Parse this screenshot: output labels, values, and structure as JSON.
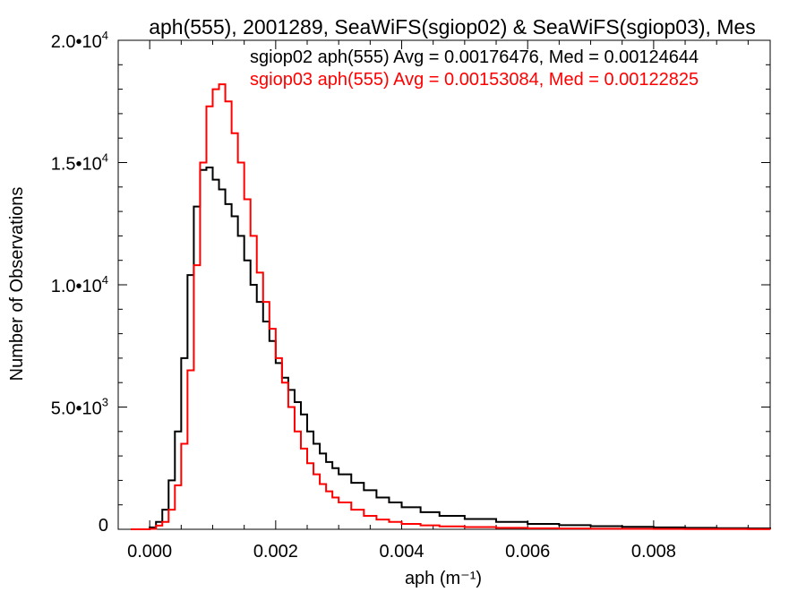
{
  "chart_data": {
    "type": "line",
    "step": true,
    "title": "aph(555), 2001289, SeaWiFS(sgiop02) & SeaWiFS(sgiop03), Mes",
    "xlabel": "aph (m⁻¹)",
    "ylabel": "Number of Observations",
    "xlim": [
      -0.0005,
      0.00985
    ],
    "ylim": [
      0,
      20000
    ],
    "x_ticks": [
      {
        "value": 0.0,
        "label": "0.000"
      },
      {
        "value": 0.002,
        "label": "0.002"
      },
      {
        "value": 0.004,
        "label": "0.004"
      },
      {
        "value": 0.006,
        "label": "0.006"
      },
      {
        "value": 0.008,
        "label": "0.008"
      }
    ],
    "y_ticks": [
      {
        "value": 0,
        "mant": "0",
        "exp": ""
      },
      {
        "value": 5000,
        "mant": "5.0•10",
        "exp": "3"
      },
      {
        "value": 10000,
        "mant": "1.0•10",
        "exp": "4"
      },
      {
        "value": 15000,
        "mant": "1.5•10",
        "exp": "4"
      },
      {
        "value": 20000,
        "mant": "2.0•10",
        "exp": "4"
      }
    ],
    "legend_position": "top-right",
    "series": [
      {
        "name": "sgiop02 aph(555) Avg = 0.00176476, Med = 0.00124644",
        "color": "#000000",
        "points": [
          [
            -0.0003,
            0
          ],
          [
            0.0,
            80
          ],
          [
            0.0001,
            300
          ],
          [
            0.0002,
            800
          ],
          [
            0.0003,
            2000
          ],
          [
            0.0004,
            4000
          ],
          [
            0.0005,
            7000
          ],
          [
            0.0006,
            10400
          ],
          [
            0.0007,
            13200
          ],
          [
            0.0008,
            14700
          ],
          [
            0.0009,
            14800
          ],
          [
            0.001,
            14300
          ],
          [
            0.0011,
            13900
          ],
          [
            0.0012,
            13300
          ],
          [
            0.0013,
            12800
          ],
          [
            0.0014,
            12000
          ],
          [
            0.0015,
            11000
          ],
          [
            0.0016,
            10000
          ],
          [
            0.0017,
            9300
          ],
          [
            0.0018,
            8500
          ],
          [
            0.0019,
            7700
          ],
          [
            0.002,
            6800
          ],
          [
            0.0021,
            6200
          ],
          [
            0.0022,
            5700
          ],
          [
            0.0023,
            5200
          ],
          [
            0.0024,
            4700
          ],
          [
            0.0025,
            4000
          ],
          [
            0.0026,
            3500
          ],
          [
            0.0027,
            3100
          ],
          [
            0.0028,
            2750
          ],
          [
            0.0029,
            2500
          ],
          [
            0.003,
            2250
          ],
          [
            0.0032,
            1900
          ],
          [
            0.0034,
            1600
          ],
          [
            0.0036,
            1300
          ],
          [
            0.0038,
            1100
          ],
          [
            0.004,
            900
          ],
          [
            0.0043,
            700
          ],
          [
            0.0046,
            550
          ],
          [
            0.005,
            420
          ],
          [
            0.0055,
            300
          ],
          [
            0.006,
            220
          ],
          [
            0.0065,
            170
          ],
          [
            0.007,
            130
          ],
          [
            0.0075,
            100
          ],
          [
            0.008,
            80
          ],
          [
            0.0085,
            60
          ],
          [
            0.009,
            45
          ],
          [
            0.0095,
            35
          ],
          [
            0.00985,
            30
          ]
        ]
      },
      {
        "name": "sgiop03 aph(555) Avg = 0.00153084, Med = 0.00122825",
        "color": "#ff0000",
        "points": [
          [
            -0.0003,
            0
          ],
          [
            0.0,
            20
          ],
          [
            0.0001,
            150
          ],
          [
            0.0002,
            300
          ],
          [
            0.0003,
            800
          ],
          [
            0.0004,
            1800
          ],
          [
            0.0005,
            3500
          ],
          [
            0.0006,
            6500
          ],
          [
            0.0007,
            10800
          ],
          [
            0.0008,
            15000
          ],
          [
            0.0009,
            17300
          ],
          [
            0.001,
            18000
          ],
          [
            0.0011,
            18200
          ],
          [
            0.0012,
            17500
          ],
          [
            0.0013,
            16200
          ],
          [
            0.0014,
            15000
          ],
          [
            0.0015,
            13500
          ],
          [
            0.0016,
            12000
          ],
          [
            0.0017,
            10500
          ],
          [
            0.0018,
            9300
          ],
          [
            0.0019,
            8200
          ],
          [
            0.002,
            7000
          ],
          [
            0.0021,
            6000
          ],
          [
            0.0022,
            5000
          ],
          [
            0.0023,
            4000
          ],
          [
            0.0024,
            3300
          ],
          [
            0.0025,
            2700
          ],
          [
            0.0026,
            2250
          ],
          [
            0.0027,
            1850
          ],
          [
            0.0028,
            1550
          ],
          [
            0.0029,
            1300
          ],
          [
            0.003,
            1100
          ],
          [
            0.0032,
            800
          ],
          [
            0.0034,
            550
          ],
          [
            0.0036,
            400
          ],
          [
            0.0038,
            300
          ],
          [
            0.004,
            220
          ],
          [
            0.0043,
            160
          ],
          [
            0.0046,
            120
          ],
          [
            0.005,
            90
          ],
          [
            0.0055,
            60
          ],
          [
            0.006,
            40
          ],
          [
            0.0065,
            30
          ],
          [
            0.007,
            22
          ],
          [
            0.0075,
            16
          ],
          [
            0.008,
            12
          ],
          [
            0.0085,
            9
          ],
          [
            0.009,
            7
          ],
          [
            0.0095,
            5
          ],
          [
            0.00985,
            4
          ]
        ]
      }
    ]
  }
}
